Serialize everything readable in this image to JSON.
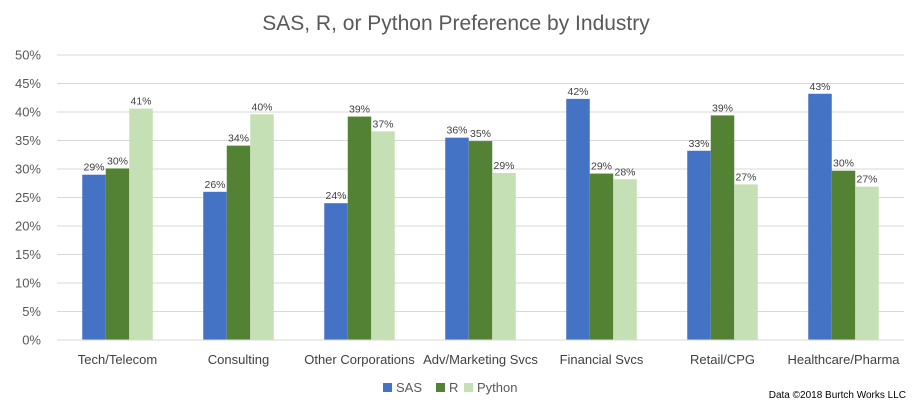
{
  "chart_data": {
    "type": "bar",
    "title": "SAS, R, or Python Preference by Industry",
    "categories": [
      "Tech/Telecom",
      "Consulting",
      "Other Corporations",
      "Adv/Marketing Svcs",
      "Financial Svcs",
      "Retail/CPG",
      "Healthcare/Pharma"
    ],
    "series": [
      {
        "name": "SAS",
        "color": "#4472c4",
        "values": [
          29,
          26,
          24,
          36,
          42,
          33,
          43
        ],
        "plotted": [
          29,
          26,
          24,
          35.5,
          42.3,
          33.2,
          43.2
        ]
      },
      {
        "name": "R",
        "color": "#548235",
        "values": [
          30,
          34,
          39,
          35,
          29,
          39,
          30
        ],
        "plotted": [
          30.1,
          34.1,
          39.2,
          34.9,
          29.2,
          39.4,
          29.7
        ]
      },
      {
        "name": "Python",
        "color": "#c5e0b4",
        "values": [
          41,
          40,
          37,
          29,
          28,
          27,
          27
        ],
        "plotted": [
          40.6,
          39.6,
          36.6,
          29.3,
          28.2,
          27.3,
          26.9
        ]
      }
    ],
    "ylim": [
      0,
      50
    ],
    "yticks": [
      "0%",
      "5%",
      "10%",
      "15%",
      "20%",
      "25%",
      "30%",
      "35%",
      "40%",
      "45%",
      "50%"
    ],
    "ylabel": "",
    "xlabel": "",
    "grid": true,
    "legend_position": "bottom",
    "source_note": "Data ©2018 Burtch Works LLC",
    "gridline_color": "#d9d9d9"
  }
}
